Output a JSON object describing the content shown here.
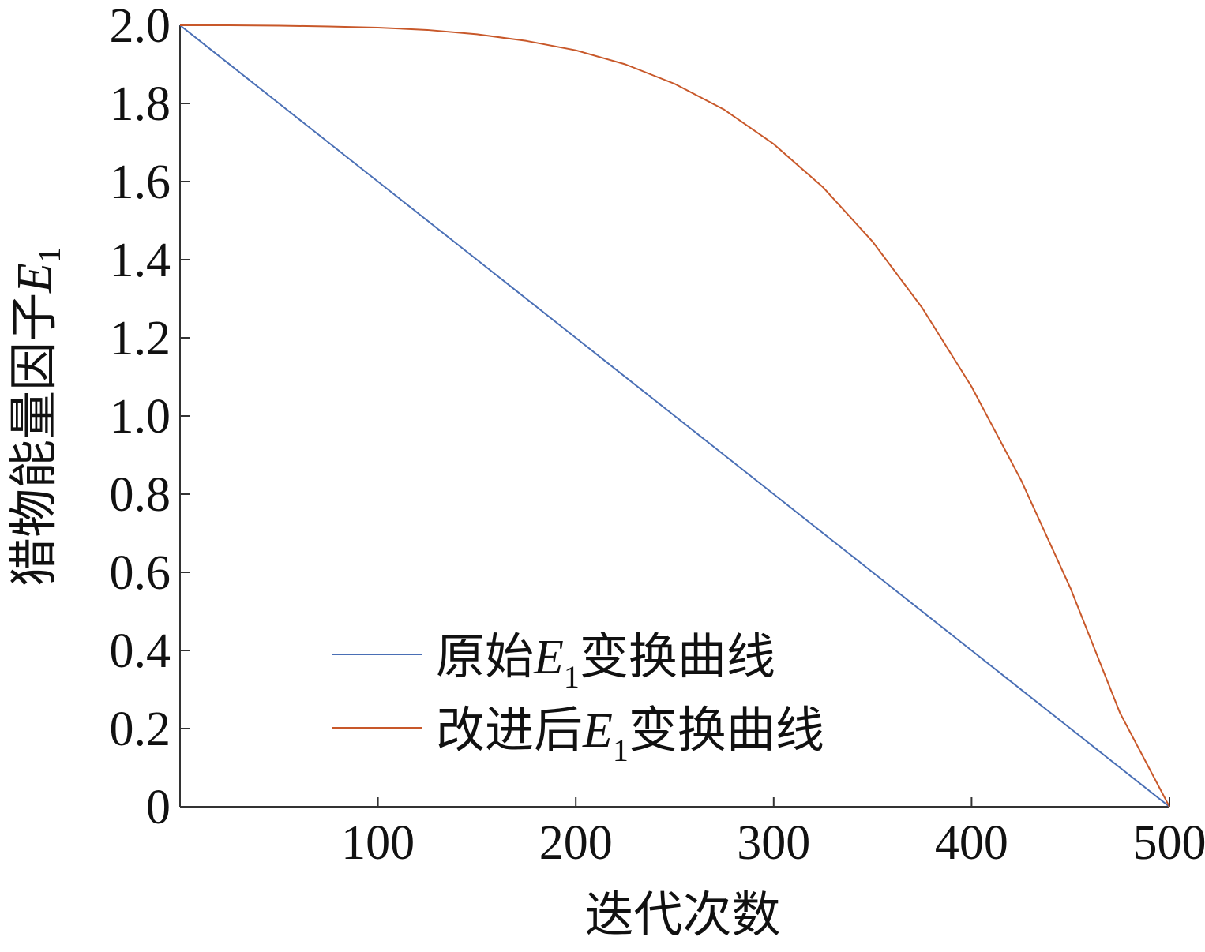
{
  "chart_data": {
    "type": "line",
    "title": "",
    "xlabel": "迭代次数",
    "ylabel": {
      "prefix": "猎物能量因子",
      "var": "E",
      "sub": "1"
    },
    "xlim": [
      0,
      500
    ],
    "ylim": [
      0,
      2.0
    ],
    "xticks": [
      100,
      200,
      300,
      400,
      500
    ],
    "xtick_labels": [
      "100",
      "200",
      "300",
      "400",
      "500"
    ],
    "yticks": [
      0,
      0.2,
      0.4,
      0.6,
      0.8,
      1.0,
      1.2,
      1.4,
      1.6,
      1.8,
      2.0
    ],
    "ytick_labels": [
      "0",
      "0.2",
      "0.4",
      "0.6",
      "0.8",
      "1.0",
      "1.2",
      "1.4",
      "1.6",
      "1.8",
      "2.0"
    ],
    "grid": false,
    "legend_position": "bottom-left",
    "series": [
      {
        "name": {
          "pre": "原始",
          "var": "E",
          "sub": "1",
          "post": "变换曲线"
        },
        "color": "#4a6fb5",
        "x": [
          0,
          50,
          100,
          150,
          200,
          250,
          300,
          350,
          400,
          450,
          500
        ],
        "y": [
          2.0,
          1.8,
          1.6,
          1.4,
          1.2,
          1.0,
          0.8,
          0.6,
          0.4,
          0.2,
          0.0
        ]
      },
      {
        "name": {
          "pre": "改进后",
          "var": "E",
          "sub": "1",
          "post": "变换曲线"
        },
        "color": "#c8582a",
        "x": [
          0,
          25,
          50,
          75,
          100,
          125,
          150,
          175,
          200,
          225,
          250,
          275,
          300,
          325,
          350,
          375,
          400,
          425,
          450,
          475,
          500
        ],
        "y": [
          2.0,
          2.0,
          1.999,
          1.997,
          1.994,
          1.988,
          1.977,
          1.96,
          1.936,
          1.9,
          1.85,
          1.784,
          1.696,
          1.585,
          1.446,
          1.277,
          1.075,
          0.836,
          0.559,
          0.24,
          0.0
        ]
      }
    ]
  }
}
